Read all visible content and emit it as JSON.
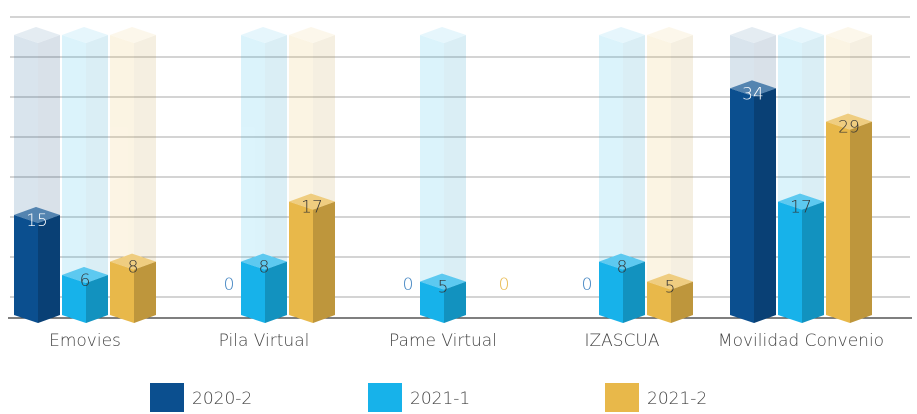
{
  "chart_data": {
    "type": "bar3d",
    "categories": [
      "Emovies",
      "Pila Virtual",
      "Pame Virtual",
      "IZASCUA",
      "Movilidad Convenio"
    ],
    "series": [
      {
        "name": "2020-2",
        "color": "#0b4f8f",
        "values": [
          15,
          0,
          0,
          0,
          34
        ]
      },
      {
        "name": "2021-1",
        "color": "#17b2ea",
        "values": [
          6,
          8,
          5,
          8,
          17
        ]
      },
      {
        "name": "2021-2",
        "color": "#e8b84a",
        "values": [
          8,
          17,
          0,
          5,
          29
        ]
      }
    ],
    "ylim": [
      0,
      42
    ],
    "yticks": [
      0,
      6,
      12,
      18,
      24,
      30,
      36,
      42
    ],
    "grid": true,
    "legend": "bottom"
  }
}
